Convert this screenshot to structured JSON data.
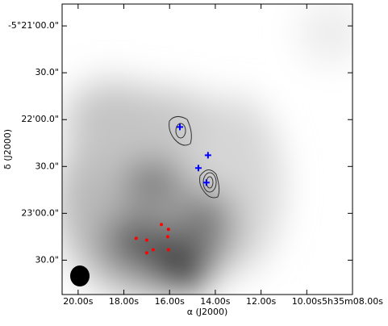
{
  "chart_data": {
    "type": "scatter",
    "x_label": "α (J2000)",
    "y_label": "δ (J2000)",
    "xlim": [
      20.7,
      8.0
    ],
    "xticks": [
      {
        "value": 20,
        "label": "20.00s"
      },
      {
        "value": 18,
        "label": "18.00s"
      },
      {
        "value": 16,
        "label": "16.00s"
      },
      {
        "value": 14,
        "label": "14.00s"
      },
      {
        "value": 12,
        "label": "12.00s"
      },
      {
        "value": 10,
        "label": "10.00s"
      },
      {
        "value": 8,
        "label": "5h35m08.00s"
      }
    ],
    "ylim": [
      172,
      -14
    ],
    "yticks": [
      {
        "value": 0,
        "label": "-5°21'00.0\""
      },
      {
        "value": 30,
        "label": "30.0\""
      },
      {
        "value": 60,
        "label": "22'00.0\""
      },
      {
        "value": 90,
        "label": "30.0\""
      },
      {
        "value": 120,
        "label": "23'00.0\""
      },
      {
        "value": 150,
        "label": "30.0\""
      }
    ],
    "series": [
      {
        "marker": "plus",
        "color": "#0000ff",
        "x": [
          15.55,
          14.32,
          14.74,
          14.39
        ],
        "values": [
          64.7,
          82.8,
          91.0,
          100.3
        ]
      },
      {
        "marker": "star",
        "color": "#ff0000",
        "x": [
          16.36,
          16.05,
          17.46,
          17.0,
          16.08,
          17.0,
          16.72,
          16.05
        ],
        "values": [
          127.2,
          130.3,
          136.0,
          137.1,
          135.0,
          145.3,
          143.3,
          143.3
        ]
      }
    ]
  }
}
